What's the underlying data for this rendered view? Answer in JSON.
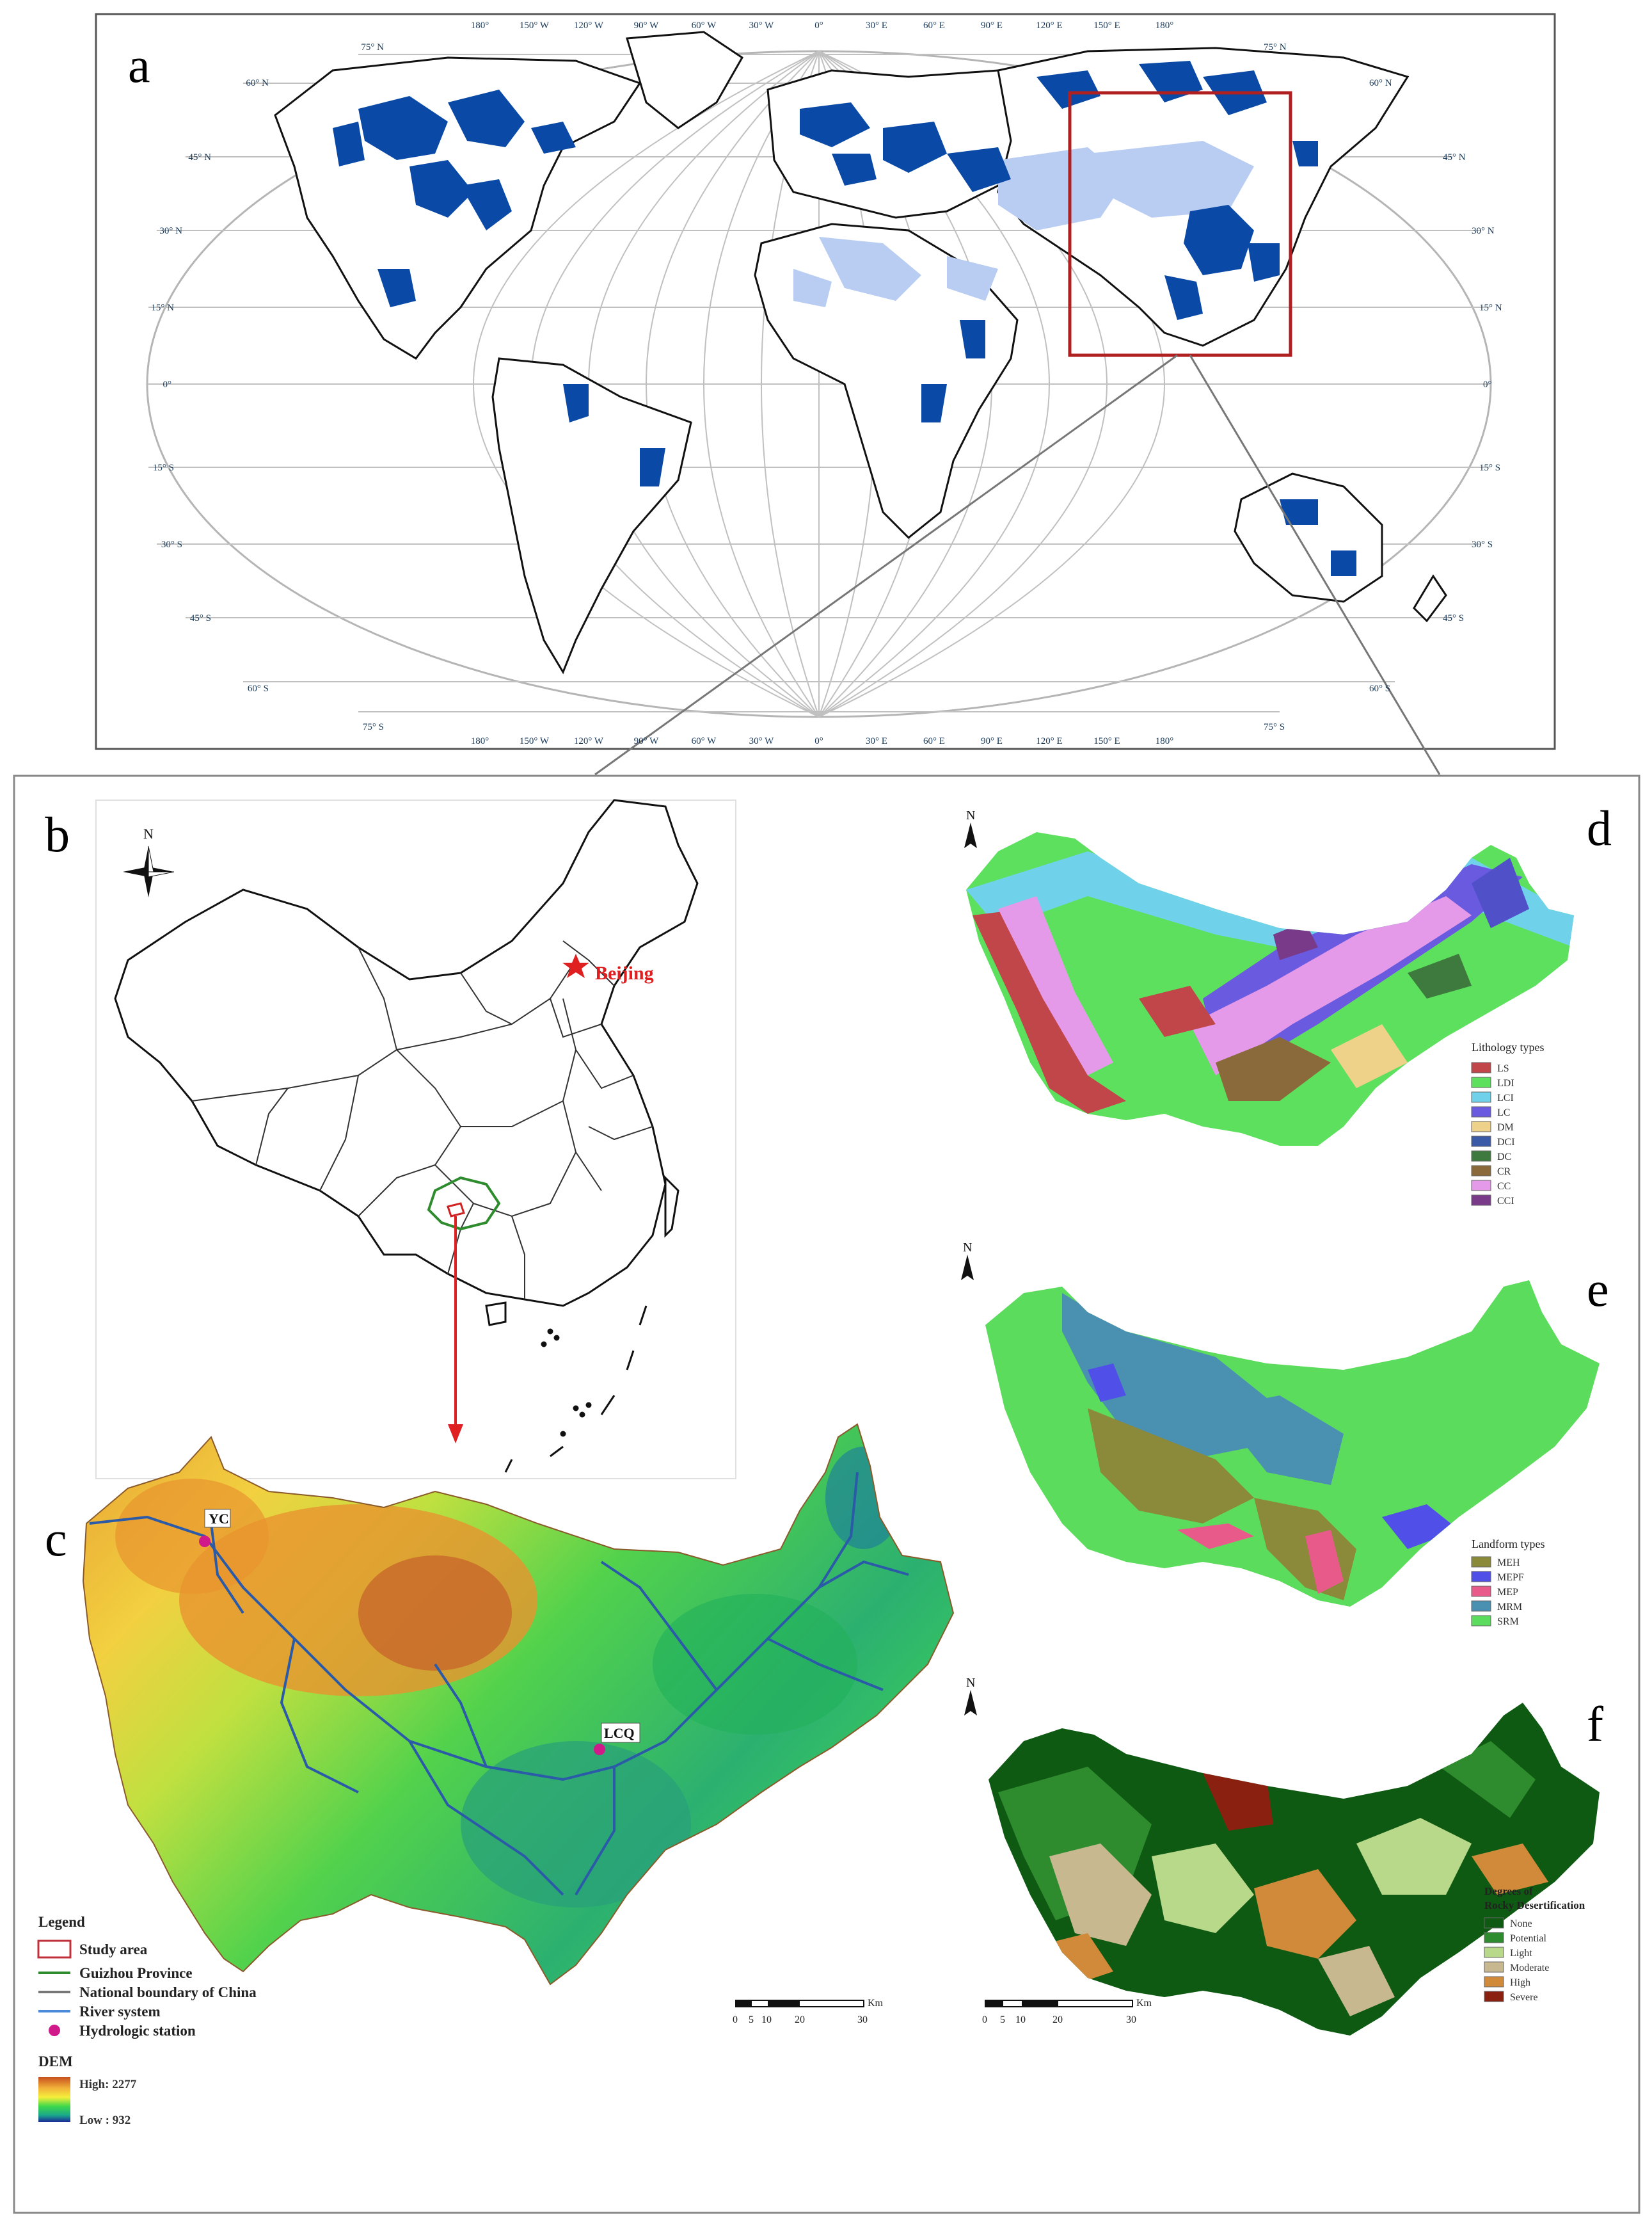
{
  "panel_a": {
    "letter": "a",
    "lon_labels": [
      "180°",
      "150° W",
      "120° W",
      "90° W",
      "60° W",
      "30° W",
      "0°",
      "30° E",
      "60° E",
      "90° E",
      "120° E",
      "150° E",
      "180°"
    ],
    "lat_labels_left": [
      "75° N",
      "60° N",
      "45° N",
      "30° N",
      "15° N",
      "0°",
      "15° S",
      "30° S",
      "45° S",
      "60° S",
      "75° S"
    ],
    "lat_labels_right": [
      "75° N",
      "60° N",
      "45° N",
      "30° N",
      "15° N",
      "0°",
      "15° S",
      "30° S",
      "45° S",
      "60° S",
      "75° S"
    ],
    "colors": {
      "karst_carbonate": "#0a4aa6",
      "karst_light": "#b9cdf2",
      "highlight": "#b02020"
    }
  },
  "panel_b": {
    "letter": "b",
    "north": "N",
    "capital_label": "Beijing",
    "colors": {
      "capital": "#e02020",
      "guizhou": "#2e8b2e",
      "arrow": "#e02020"
    }
  },
  "panel_c": {
    "letter": "c",
    "stations": [
      {
        "name": "YC"
      },
      {
        "name": "LCQ"
      }
    ],
    "legend_title": "Legend",
    "legend_items": [
      {
        "label": "Study area",
        "symbol": "box-red"
      },
      {
        "label": "Guizhou Province",
        "symbol": "line-green"
      },
      {
        "label": "National boundary of China",
        "symbol": "line-gray"
      },
      {
        "label": "River system",
        "symbol": "line-blue"
      },
      {
        "label": "Hydrologic station",
        "symbol": "dot-magenta"
      }
    ],
    "dem_title": "DEM",
    "dem_high": "High: 2277",
    "dem_low": "Low : 932",
    "scale_labels": [
      "0",
      "5",
      "10",
      "20",
      "30"
    ],
    "scale_unit": "Km"
  },
  "panel_d": {
    "letter": "d",
    "north": "N",
    "legend_title": "Lithology types",
    "items": [
      {
        "label": "LS",
        "color": "#c0464a"
      },
      {
        "label": "LDI",
        "color": "#5de05d"
      },
      {
        "label": "LCI",
        "color": "#6fd2ea"
      },
      {
        "label": "LC",
        "color": "#6a5ae0"
      },
      {
        "label": "DM",
        "color": "#efd28a"
      },
      {
        "label": "DCI",
        "color": "#3a5aa8"
      },
      {
        "label": "DC",
        "color": "#3e7a3e"
      },
      {
        "label": "CR",
        "color": "#8a6a3a"
      },
      {
        "label": "CC",
        "color": "#e49ae8"
      },
      {
        "label": "CCI",
        "color": "#7a3a8a"
      }
    ]
  },
  "panel_e": {
    "letter": "e",
    "north": "N",
    "legend_title": "Landform types",
    "items": [
      {
        "label": "MEH",
        "color": "#8a8a3a"
      },
      {
        "label": "MEPF",
        "color": "#5050e8"
      },
      {
        "label": "MEP",
        "color": "#e85a8a"
      },
      {
        "label": "MRM",
        "color": "#4a90b0"
      },
      {
        "label": "SRM",
        "color": "#5cdc5c"
      }
    ]
  },
  "panel_f": {
    "letter": "f",
    "north": "N",
    "legend_title_1": "Degrees of",
    "legend_title_2": "Rocky Desertification",
    "items": [
      {
        "label": "None",
        "color": "#0f5a12"
      },
      {
        "label": "Potential",
        "color": "#2e8b2e"
      },
      {
        "label": "Light",
        "color": "#b8d88a"
      },
      {
        "label": "Moderate",
        "color": "#c8b890"
      },
      {
        "label": "High",
        "color": "#d08a3a"
      },
      {
        "label": "Severe",
        "color": "#8a2010"
      }
    ],
    "scale_labels": [
      "0",
      "5",
      "10",
      "20",
      "30"
    ],
    "scale_unit": "Km"
  }
}
